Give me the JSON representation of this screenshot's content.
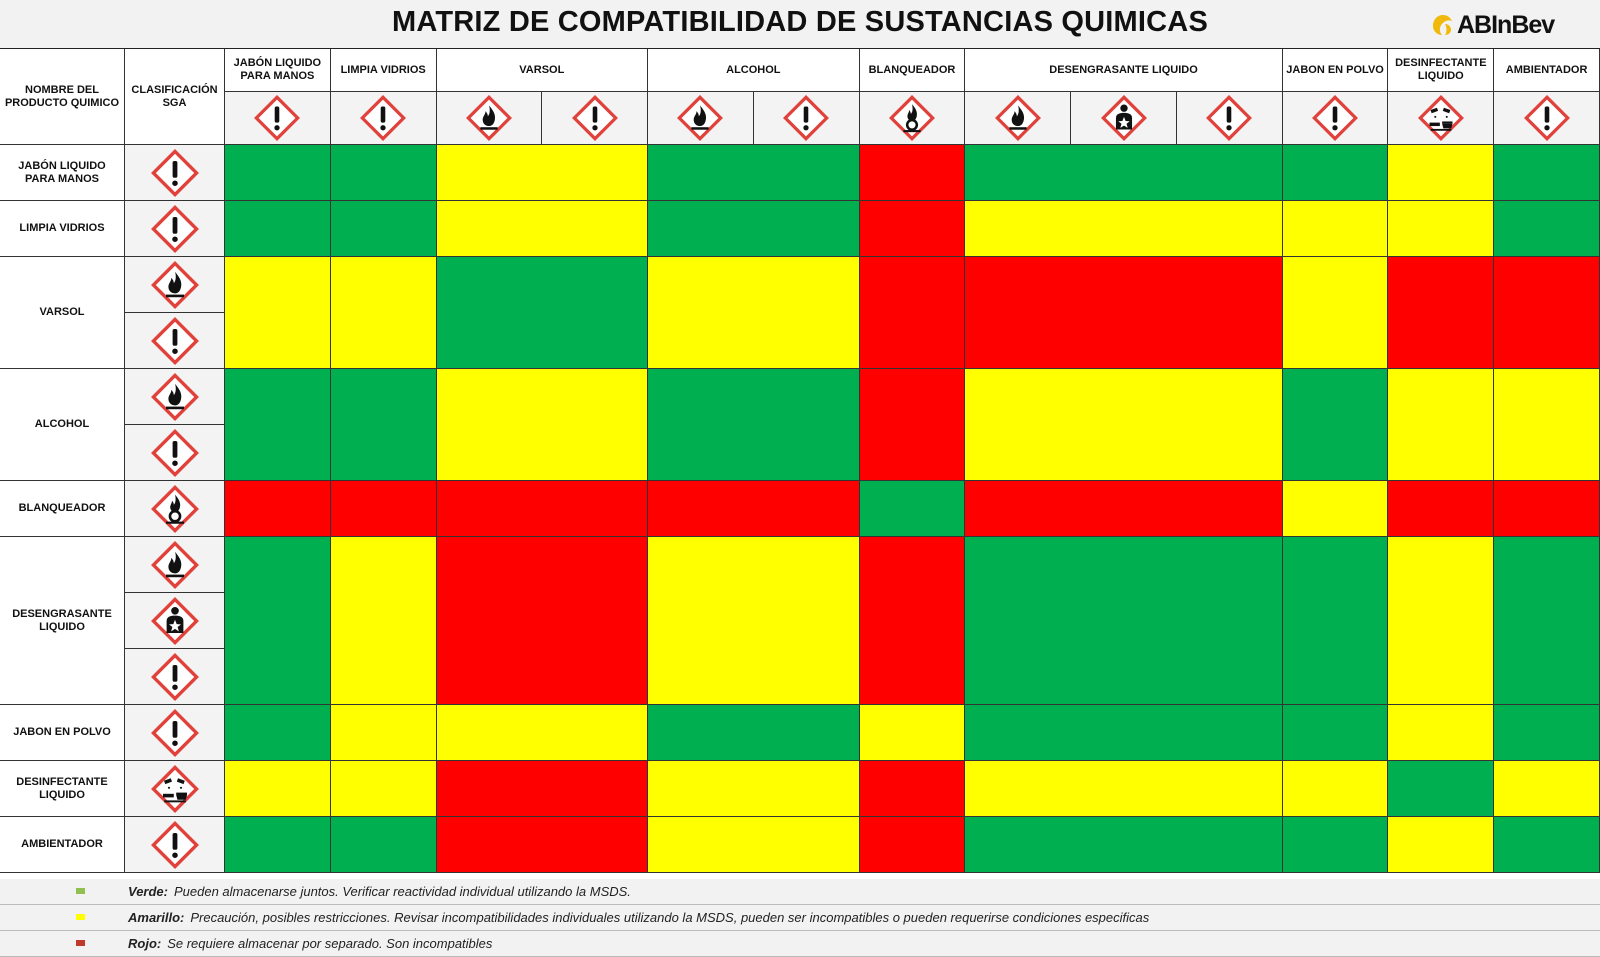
{
  "header": {
    "title": "MATRIZ DE COMPATIBILIDAD DE SUSTANCIAS QUIMICAS",
    "logo_text": "ABInBev"
  },
  "matrix": {
    "corner_name": "NOMBRE DEL PRODUCTO QUIMICO",
    "corner_class": "CLASIFICACIÓN SGA",
    "columns": [
      {
        "label": "JABÓN LIQUIDO PARA MANOS",
        "icons": [
          "exclamation-pictogram-icon"
        ]
      },
      {
        "label": "LIMPIA VIDRIOS",
        "icons": [
          "exclamation-pictogram-icon"
        ]
      },
      {
        "label": "VARSOL",
        "icons": [
          "flame-pictogram-icon",
          "exclamation-pictogram-icon"
        ]
      },
      {
        "label": "ALCOHOL",
        "icons": [
          "flame-pictogram-icon",
          "exclamation-pictogram-icon"
        ]
      },
      {
        "label": "BLANQUEADOR",
        "icons": [
          "flame-over-circle-pictogram-icon"
        ]
      },
      {
        "label": "DESENGRASANTE LIQUIDO",
        "icons": [
          "flame-pictogram-icon",
          "health-hazard-pictogram-icon",
          "exclamation-pictogram-icon"
        ]
      },
      {
        "label": "JABON EN POLVO",
        "icons": [
          "exclamation-pictogram-icon"
        ]
      },
      {
        "label": "DESINFECTANTE LIQUIDO",
        "icons": [
          "corrosion-pictogram-icon"
        ]
      },
      {
        "label": "AMBIENTADOR",
        "icons": [
          "exclamation-pictogram-icon"
        ]
      }
    ],
    "rows": [
      {
        "label": "JABÓN LIQUIDO PARA MANOS",
        "icons": [
          "exclamation-pictogram-icon"
        ],
        "values": [
          "green",
          "green",
          "yellow",
          "green",
          "red",
          "green",
          "green",
          "yellow",
          "green"
        ]
      },
      {
        "label": "LIMPIA VIDRIOS",
        "icons": [
          "exclamation-pictogram-icon"
        ],
        "values": [
          "green",
          "green",
          "yellow",
          "green",
          "red",
          "yellow",
          "yellow",
          "yellow",
          "green"
        ]
      },
      {
        "label": "VARSOL",
        "icons": [
          "flame-pictogram-icon",
          "exclamation-pictogram-icon"
        ],
        "values": [
          "yellow",
          "yellow",
          "green",
          "yellow",
          "red",
          "red",
          "yellow",
          "red",
          "red"
        ]
      },
      {
        "label": "ALCOHOL",
        "icons": [
          "flame-pictogram-icon",
          "exclamation-pictogram-icon"
        ],
        "values": [
          "green",
          "green",
          "yellow",
          "green",
          "red",
          "yellow",
          "green",
          "yellow",
          "yellow"
        ]
      },
      {
        "label": "BLANQUEADOR",
        "icons": [
          "flame-over-circle-pictogram-icon"
        ],
        "values": [
          "red",
          "red",
          "red",
          "red",
          "green",
          "red",
          "yellow",
          "red",
          "red"
        ]
      },
      {
        "label": "DESENGRASANTE LIQUIDO",
        "icons": [
          "flame-pictogram-icon",
          "health-hazard-pictogram-icon",
          "exclamation-pictogram-icon"
        ],
        "values": [
          "green",
          "yellow",
          "red",
          "yellow",
          "red",
          "green",
          "green",
          "yellow",
          "green"
        ]
      },
      {
        "label": "JABON EN POLVO",
        "icons": [
          "exclamation-pictogram-icon"
        ],
        "values": [
          "green",
          "yellow",
          "yellow",
          "green",
          "yellow",
          "green",
          "green",
          "yellow",
          "green"
        ]
      },
      {
        "label": "DESINFECTANTE LIQUIDO",
        "icons": [
          "corrosion-pictogram-icon"
        ],
        "values": [
          "yellow",
          "yellow",
          "red",
          "yellow",
          "red",
          "yellow",
          "yellow",
          "green",
          "yellow"
        ]
      },
      {
        "label": "AMBIENTADOR",
        "icons": [
          "exclamation-pictogram-icon"
        ],
        "values": [
          "green",
          "green",
          "red",
          "yellow",
          "red",
          "green",
          "green",
          "yellow",
          "green"
        ]
      }
    ]
  },
  "legend": [
    {
      "key": "Verde:",
      "text": "Pueden almacenarse juntos. Verificar reactividad individual utilizando la MSDS.",
      "color": "#92c050"
    },
    {
      "key": "Amarillo:",
      "text": "Precaución, posibles restricciones. Revisar incompatibilidades individuales utilizando la MSDS, pueden ser incompatibles o pueden requerirse condiciones especificas",
      "color": "#ffff00"
    },
    {
      "key": "Rojo:",
      "text": "Se requiere almacenar por separado. Son incompatibles",
      "color": "#c0392b"
    }
  ],
  "colors": {
    "green": "#00b050",
    "yellow": "#ffff00",
    "red": "#ff0000",
    "pictogram_border": "#e0413a"
  }
}
